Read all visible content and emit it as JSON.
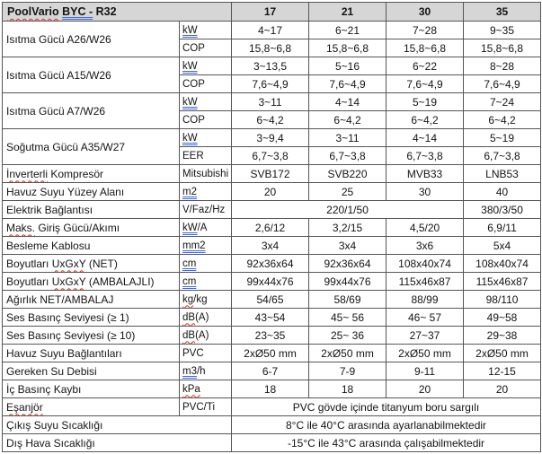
{
  "colors": {
    "header_bg": "#d6d6d6",
    "border": "#565656",
    "spell_underline": "#dd2a1c",
    "grammar_underline": "#3f6bd8"
  },
  "header": {
    "title_text": "PoolVario BYC - R32",
    "title_segments": [
      {
        "t": "PoolVario",
        "mark": "spell"
      },
      {
        "t": " "
      },
      {
        "t": "BYC -",
        "mark": "grammar"
      },
      {
        "t": " R32"
      }
    ],
    "columns": [
      "17",
      "21",
      "30",
      "35"
    ]
  },
  "rows": [
    {
      "label": {
        "segs": [
          {
            "t": "Isıtma Gücü A26/W26"
          }
        ],
        "rowspan": 2
      },
      "unit": [
        {
          "t": "kW",
          "mark": "grammar"
        }
      ],
      "values": [
        "4~17",
        "6~21",
        "7~28",
        "9~35"
      ]
    },
    {
      "unit": [
        {
          "t": "COP"
        }
      ],
      "values": [
        "15,8~6,8",
        "15,8~6,8",
        "15,8~6,8",
        "15,8~6,8"
      ]
    },
    {
      "label": {
        "segs": [
          {
            "t": "Isıtma Gücü A15/W26"
          }
        ],
        "rowspan": 2
      },
      "unit": [
        {
          "t": "kW",
          "mark": "grammar"
        }
      ],
      "values": [
        "3~13,5",
        "5~16",
        "6~22",
        "8~28"
      ]
    },
    {
      "unit": [
        {
          "t": "COP"
        }
      ],
      "values": [
        "7,6~4,9",
        "7,6~4,9",
        "7,6~4,9",
        "7,6~4,9"
      ]
    },
    {
      "label": {
        "segs": [
          {
            "t": "Isıtma Gücü A7/W26"
          }
        ],
        "rowspan": 2
      },
      "unit": [
        {
          "t": "kW",
          "mark": "grammar"
        }
      ],
      "values": [
        "3~11",
        "4~14",
        "5~19",
        "7~24"
      ]
    },
    {
      "unit": [
        {
          "t": "COP"
        }
      ],
      "values": [
        "6~4,2",
        "6~4,2",
        "6~4,2",
        "6~4,2"
      ]
    },
    {
      "label": {
        "segs": [
          {
            "t": "Soğutma Gücü A35/W27"
          }
        ],
        "rowspan": 2
      },
      "unit": [
        {
          "t": "kW",
          "mark": "grammar"
        }
      ],
      "values": [
        "3~9,4",
        "3~11",
        "4~14",
        "5~19"
      ]
    },
    {
      "unit": [
        {
          "t": "EER"
        }
      ],
      "values": [
        "6,7~3,8",
        "6,7~3,8",
        "6,7~3,8",
        "6,7~3,8"
      ]
    },
    {
      "label": {
        "segs": [
          {
            "t": "İnverterli",
            "mark": "spell"
          },
          {
            "t": " Kompresör"
          }
        ]
      },
      "unit": [
        {
          "t": "Mitsubishi"
        }
      ],
      "values": [
        "SVB172",
        "SVB220",
        "MVB33",
        "LNB53"
      ]
    },
    {
      "label": {
        "segs": [
          {
            "t": "Havuz Suyu Yüzey Alanı"
          }
        ]
      },
      "unit": [
        {
          "t": "m2",
          "mark": "grammar"
        }
      ],
      "values": [
        "20",
        "25",
        "30",
        "40"
      ]
    },
    {
      "label": {
        "segs": [
          {
            "t": "Elektrik Bağlantısı"
          }
        ]
      },
      "unit": [
        {
          "t": "V/Faz/Hz"
        }
      ],
      "values": [
        {
          "text": "220/1/50",
          "colspan": 3
        },
        {
          "text": "380/3/50",
          "colspan": 1
        }
      ]
    },
    {
      "label": {
        "segs": [
          {
            "t": "Maks.",
            "mark": "spell"
          },
          {
            "t": " Giriş Gücü/Akımı"
          }
        ]
      },
      "unit": [
        {
          "t": "kW",
          "mark": "grammar"
        },
        {
          "t": "/A"
        }
      ],
      "values": [
        "2,6/12",
        "3,2/15",
        "4,5/20",
        "6,9/11"
      ]
    },
    {
      "label": {
        "segs": [
          {
            "t": "Besleme Kablosu"
          }
        ]
      },
      "unit": [
        {
          "t": "mm2",
          "mark": "grammar"
        }
      ],
      "values": [
        "3x4",
        "3x4",
        "3x6",
        "5x4"
      ]
    },
    {
      "label": {
        "segs": [
          {
            "t": "Boyutları "
          },
          {
            "t": "UxGxY",
            "mark": "spell"
          },
          {
            "t": " (NET)"
          }
        ]
      },
      "unit": [
        {
          "t": "cm",
          "mark": "grammar"
        }
      ],
      "values": [
        "92x36x64",
        "92x36x64",
        "108x40x74",
        "108x40x74"
      ]
    },
    {
      "label": {
        "segs": [
          {
            "t": "Boyutları "
          },
          {
            "t": "UxGxY",
            "mark": "spell"
          },
          {
            "t": " (AMBALAJLI)"
          }
        ]
      },
      "unit": [
        {
          "t": "cm",
          "mark": "grammar"
        }
      ],
      "values": [
        "99x44x76",
        "99x44x76",
        "115x46x87",
        "115x46x87"
      ]
    },
    {
      "label": {
        "segs": [
          {
            "t": "Ağırlık NET/AMBALAJ"
          }
        ]
      },
      "unit": [
        {
          "t": "kg",
          "mark": "spell"
        },
        {
          "t": "/kg"
        }
      ],
      "values": [
        "54/65",
        "58/69",
        "88/99",
        "98/110"
      ]
    },
    {
      "label": {
        "segs": [
          {
            "t": "Ses Basınç Seviyesi (≥ 1)"
          }
        ]
      },
      "unit": [
        {
          "t": "dB",
          "mark": "spell"
        },
        {
          "t": "(A)"
        }
      ],
      "values": [
        "43~54",
        "45~ 56",
        "46~ 57",
        "49~58"
      ]
    },
    {
      "label": {
        "segs": [
          {
            "t": "Ses Basınç Seviyesi (≥ 10)"
          }
        ]
      },
      "unit": [
        {
          "t": "dB",
          "mark": "spell"
        },
        {
          "t": "(A)"
        }
      ],
      "values": [
        "23~35",
        "25~ 36",
        "27~37",
        "29~38"
      ]
    },
    {
      "label": {
        "segs": [
          {
            "t": "Havuz Suyu Bağlantıları"
          }
        ]
      },
      "unit": [
        {
          "t": "PVC"
        }
      ],
      "values": [
        "2xØ50 mm",
        "2xØ50 mm",
        "2xØ50 mm",
        "2xØ50 mm"
      ]
    },
    {
      "label": {
        "segs": [
          {
            "t": "Gereken Su Debisi"
          }
        ]
      },
      "unit": [
        {
          "t": "m3",
          "mark": "grammar"
        },
        {
          "t": "/h"
        }
      ],
      "values": [
        "6-7",
        "7-9",
        "9-11",
        "12-15"
      ]
    },
    {
      "label": {
        "segs": [
          {
            "t": "İç Basınç Kaybı"
          }
        ]
      },
      "unit": [
        {
          "t": "kPa",
          "mark": "spell"
        }
      ],
      "values": [
        "18",
        "18",
        "20",
        "20"
      ]
    },
    {
      "label": {
        "segs": [
          {
            "t": "Eşanjör",
            "mark": "spell"
          }
        ]
      },
      "unit": [
        {
          "t": "PVC/Ti"
        }
      ],
      "values": [
        {
          "text": "PVC gövde içinde titanyum boru sargılı",
          "colspan": 4
        }
      ]
    },
    {
      "label": {
        "segs": [
          {
            "t": "Çıkış Suyu Sıcaklığı"
          }
        ],
        "colspan": 2
      },
      "values": [
        {
          "text": "8°C ile 40°C arasında ayarlanabilmektedir",
          "colspan": 4
        }
      ]
    },
    {
      "label": {
        "segs": [
          {
            "t": "Dış Hava Sıcaklığı"
          }
        ],
        "colspan": 2
      },
      "values": [
        {
          "text": "-15°C ile 43°C arasında çalışabilmektedir",
          "colspan": 4
        }
      ]
    }
  ]
}
